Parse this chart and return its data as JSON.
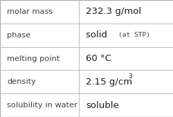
{
  "rows": [
    {
      "label": "molar mass",
      "value": "232.3 g/mol",
      "superscript": null,
      "small_text": null
    },
    {
      "label": "phase",
      "value": "solid",
      "superscript": null,
      "small_text": "(at STP)"
    },
    {
      "label": "melting point",
      "value": "60 °C",
      "superscript": null,
      "small_text": null
    },
    {
      "label": "density",
      "value": "2.15 g/cm",
      "superscript": "3",
      "small_text": null
    },
    {
      "label": "solubility in water",
      "value": "soluble",
      "superscript": null,
      "small_text": null
    }
  ],
  "col_split": 0.455,
  "bg_color": "#ffffff",
  "border_color": "#b0b0b0",
  "label_color": "#404040",
  "value_color": "#1a1a1a",
  "label_fontsize": 8.2,
  "value_fontsize": 9.5,
  "small_fontsize": 6.8,
  "sup_fontsize": 6.5
}
